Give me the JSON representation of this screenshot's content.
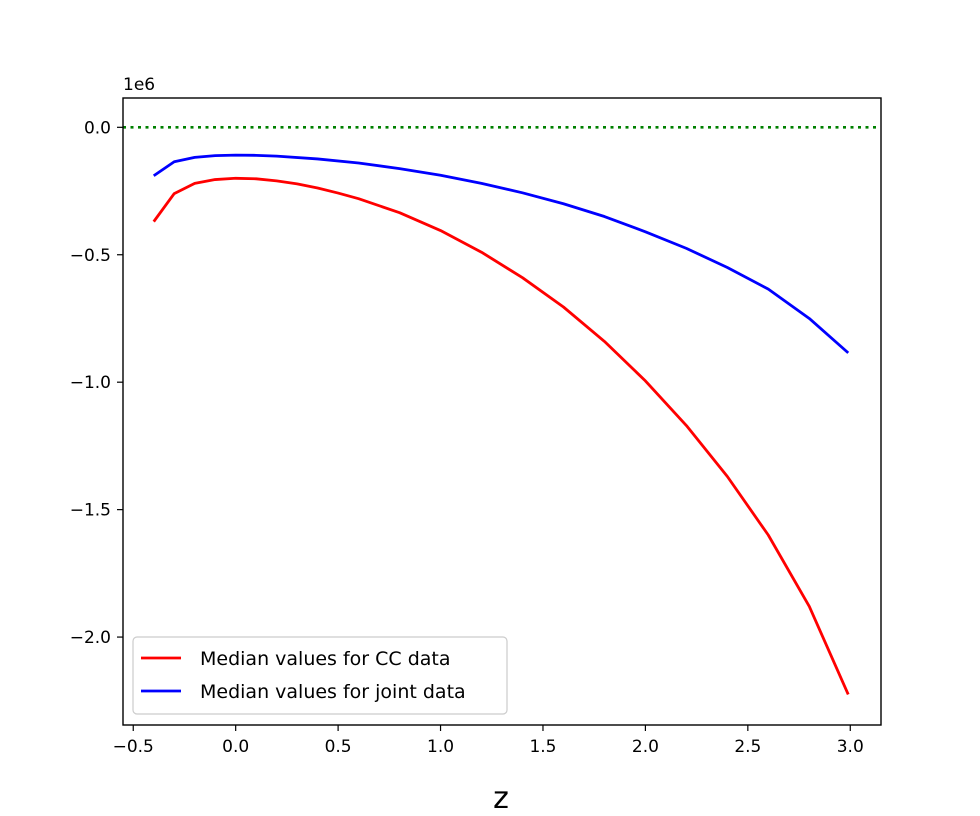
{
  "chart_data": {
    "type": "line",
    "title": "",
    "xlabel": "z",
    "ylabel": "",
    "y_offset_label": "1e6",
    "y_scale": 1000000,
    "xlim": [
      -0.55,
      3.15
    ],
    "ylim": [
      -2.345,
      0.115
    ],
    "x_ticks": [
      -0.5,
      0.0,
      0.5,
      1.0,
      1.5,
      2.0,
      2.5,
      3.0
    ],
    "x_tick_labels": [
      "−0.5",
      "0.0",
      "0.5",
      "1.0",
      "1.5",
      "2.0",
      "2.5",
      "3.0"
    ],
    "y_ticks": [
      0.0,
      -0.5,
      -1.0,
      -1.5,
      -2.0
    ],
    "y_tick_labels": [
      "0.0",
      "−0.5",
      "−1.0",
      "−1.5",
      "−2.0"
    ],
    "grid": false,
    "legend_position": "lower-left",
    "reference_line": {
      "y": 0.0,
      "color": "#008000",
      "style": "dotted"
    },
    "series": [
      {
        "name": "Median values for CC data",
        "color": "#ff0000",
        "x": [
          -0.4,
          -0.3,
          -0.2,
          -0.1,
          0.0,
          0.1,
          0.2,
          0.3,
          0.4,
          0.5,
          0.6,
          0.8,
          1.0,
          1.2,
          1.4,
          1.6,
          1.8,
          2.0,
          2.2,
          2.4,
          2.6,
          2.8,
          2.99
        ],
        "y": [
          -0.37,
          -0.26,
          -0.22,
          -0.205,
          -0.2,
          -0.202,
          -0.21,
          -0.222,
          -0.238,
          -0.258,
          -0.28,
          -0.335,
          -0.405,
          -0.49,
          -0.59,
          -0.705,
          -0.84,
          -0.995,
          -1.17,
          -1.37,
          -1.6,
          -1.88,
          -2.225
        ]
      },
      {
        "name": "Median values for joint data",
        "color": "#0000ff",
        "x": [
          -0.4,
          -0.3,
          -0.2,
          -0.1,
          0.0,
          0.1,
          0.2,
          0.4,
          0.6,
          0.8,
          1.0,
          1.2,
          1.4,
          1.6,
          1.8,
          2.0,
          2.2,
          2.4,
          2.6,
          2.8,
          2.99
        ],
        "y": [
          -0.19,
          -0.135,
          -0.118,
          -0.111,
          -0.109,
          -0.11,
          -0.113,
          -0.124,
          -0.14,
          -0.162,
          -0.188,
          -0.22,
          -0.257,
          -0.3,
          -0.35,
          -0.41,
          -0.475,
          -0.55,
          -0.635,
          -0.75,
          -0.885
        ]
      }
    ]
  }
}
